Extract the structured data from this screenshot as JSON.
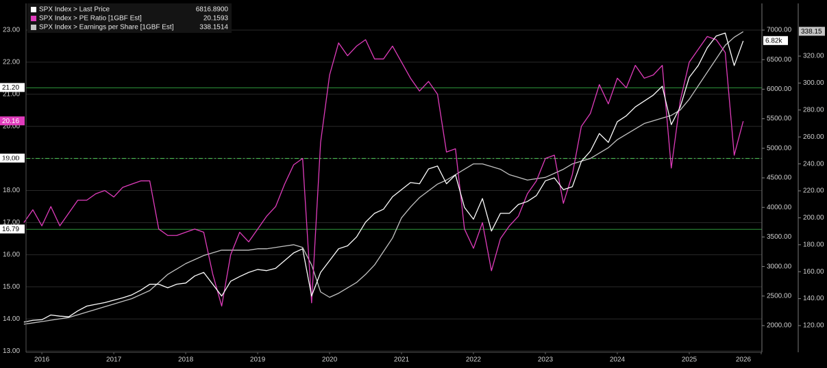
{
  "chart_data": {
    "type": "line",
    "x": [
      2016.25,
      2016.375,
      2016.5,
      2016.625,
      2016.75,
      2016.875,
      2017,
      2017.125,
      2017.25,
      2017.375,
      2017.5,
      2017.625,
      2017.75,
      2017.875,
      2018,
      2018.125,
      2018.25,
      2018.375,
      2018.5,
      2018.625,
      2018.75,
      2018.875,
      2019,
      2019.125,
      2019.25,
      2019.375,
      2019.5,
      2019.625,
      2019.75,
      2019.875,
      2020,
      2020.125,
      2020.25,
      2020.375,
      2020.5,
      2020.625,
      2020.75,
      2020.875,
      2021,
      2021.125,
      2021.25,
      2021.375,
      2021.5,
      2021.625,
      2021.75,
      2021.875,
      2022,
      2022.125,
      2022.25,
      2022.375,
      2022.5,
      2022.625,
      2022.75,
      2022.875,
      2023,
      2023.125,
      2023.25,
      2023.375,
      2023.5,
      2023.625,
      2023.75,
      2023.875,
      2024,
      2024.125,
      2024.25,
      2024.375,
      2024.5,
      2024.625,
      2024.75,
      2024.875,
      2025,
      2025.125,
      2025.25,
      2025.375,
      2025.5,
      2025.625,
      2025.75,
      2025.875,
      2026,
      2026.125,
      2026.25
    ],
    "xlim": [
      2016.28,
      2026.51
    ],
    "xticks": [
      {
        "value": 2016.5,
        "label": "2016"
      },
      {
        "value": 2017.5,
        "label": "2017"
      },
      {
        "value": 2018.5,
        "label": "2018"
      },
      {
        "value": 2019.5,
        "label": "2019"
      },
      {
        "value": 2020.5,
        "label": "2020"
      },
      {
        "value": 2021.5,
        "label": "2021"
      },
      {
        "value": 2022.5,
        "label": "2022"
      },
      {
        "value": 2023.5,
        "label": "2023"
      },
      {
        "value": 2024.5,
        "label": "2024"
      },
      {
        "value": 2025.5,
        "label": "2025"
      },
      {
        "value": 2026.5,
        "label": "2026"
      }
    ],
    "ylim": [
      12.96,
      23.83
    ],
    "yticks": [
      {
        "value": 13,
        "label": "13.00"
      },
      {
        "value": 14,
        "label": "14.00"
      },
      {
        "value": 15,
        "label": "15.00"
      },
      {
        "value": 16,
        "label": "16.00"
      },
      {
        "value": 17,
        "label": "17.00"
      },
      {
        "value": 18,
        "label": "18.00"
      },
      {
        "value": 19,
        "label": "19.00"
      },
      {
        "value": 20,
        "label": "20.00"
      },
      {
        "value": 21,
        "label": "21.00"
      },
      {
        "value": 22,
        "label": "22.00"
      },
      {
        "value": 23,
        "label": "23.00"
      }
    ],
    "y2lim": [
      1549,
      7451
    ],
    "y2ticks": [
      {
        "value": 2000,
        "label": "2000.00"
      },
      {
        "value": 2500,
        "label": "2500.00"
      },
      {
        "value": 3000,
        "label": "3000.00"
      },
      {
        "value": 3500,
        "label": "3500.00"
      },
      {
        "value": 4000,
        "label": "4000.00"
      },
      {
        "value": 4500,
        "label": "4500.00"
      },
      {
        "value": 5000,
        "label": "5000.00"
      },
      {
        "value": 5500,
        "label": "5500.00"
      },
      {
        "value": 6000,
        "label": "6000.00"
      },
      {
        "value": 6500,
        "label": "6500.00"
      },
      {
        "value": 7000,
        "label": "7000.00"
      }
    ],
    "y3lim": [
      100.2,
      359.1
    ],
    "y3ticks": [
      {
        "value": 120,
        "label": "120.00"
      },
      {
        "value": 140,
        "label": "140.00"
      },
      {
        "value": 160,
        "label": "160.00"
      },
      {
        "value": 180,
        "label": "180.00"
      },
      {
        "value": 200,
        "label": "200.00"
      },
      {
        "value": 220,
        "label": "220.00"
      },
      {
        "value": 240,
        "label": "240.00"
      },
      {
        "value": 260,
        "label": "260.00"
      },
      {
        "value": 280,
        "label": "280.00"
      },
      {
        "value": 300,
        "label": "300.00"
      },
      {
        "value": 320,
        "label": "320.00"
      }
    ],
    "grid": true,
    "reference_color": "#2f9a3c",
    "reference_lines": [
      {
        "value": 21.2,
        "label": "21.20",
        "style": "solid"
      },
      {
        "value": 19,
        "label": "19.00",
        "style": "dashdot"
      },
      {
        "value": 16.79,
        "label": "16.79",
        "style": "solid"
      }
    ],
    "series": [
      {
        "name": "SPX Index > Last Price",
        "color": "#ffffff",
        "axis": "y2",
        "legend_value": "6816.8900",
        "last_label": "6.82k",
        "values": [
          2060,
          2090,
          2100,
          2180,
          2160,
          2150,
          2250,
          2330,
          2360,
          2390,
          2430,
          2470,
          2520,
          2600,
          2700,
          2700,
          2640,
          2700,
          2720,
          2840,
          2900,
          2700,
          2500,
          2750,
          2830,
          2900,
          2950,
          2930,
          2970,
          3100,
          3230,
          3300,
          2500,
          2900,
          3100,
          3300,
          3350,
          3500,
          3750,
          3900,
          3970,
          4180,
          4300,
          4420,
          4400,
          4650,
          4700,
          4400,
          4550,
          4000,
          3800,
          4150,
          3600,
          3900,
          3900,
          4050,
          4100,
          4200,
          4450,
          4500,
          4300,
          4350,
          4780,
          4950,
          5250,
          5100,
          5450,
          5550,
          5700,
          5800,
          5900,
          6050,
          5400,
          5700,
          6200,
          6400,
          6700,
          6900,
          6950,
          6400,
          6816.89
        ]
      },
      {
        "name": "SPX Index > PE Ratio [1GBF Est]",
        "color": "#e03cbc",
        "axis": "y",
        "legend_value": "20.1593",
        "last_label": "20.16",
        "values": [
          17.0,
          17.4,
          16.9,
          17.5,
          16.9,
          17.3,
          17.7,
          17.7,
          17.9,
          18.0,
          17.8,
          18.1,
          18.2,
          18.3,
          18.3,
          16.8,
          16.6,
          16.6,
          16.7,
          16.8,
          16.7,
          15.4,
          14.4,
          16.0,
          16.7,
          16.4,
          16.8,
          17.2,
          17.5,
          18.2,
          18.8,
          19.0,
          14.5,
          19.5,
          21.6,
          22.6,
          22.2,
          22.5,
          22.7,
          22.1,
          22.1,
          22.5,
          22.0,
          21.5,
          21.1,
          21.4,
          21.0,
          19.2,
          19.3,
          16.8,
          16.2,
          17.0,
          15.5,
          16.5,
          16.9,
          17.2,
          17.9,
          18.3,
          19.0,
          19.1,
          17.6,
          18.5,
          20.0,
          20.4,
          21.3,
          20.7,
          21.5,
          21.2,
          21.9,
          21.5,
          21.6,
          21.9,
          18.7,
          20.8,
          22.0,
          22.4,
          22.8,
          22.7,
          22.3,
          19.1,
          20.1593
        ]
      },
      {
        "name": "SPX Index > Earnings per Share [1GBF Est]",
        "color": "#c4c4c4",
        "axis": "y3",
        "legend_value": "338.1514",
        "last_label": "338.15",
        "values": [
          121,
          122,
          123,
          124,
          125,
          126,
          128,
          130,
          132,
          134,
          136,
          138,
          140,
          143,
          146,
          152,
          158,
          162,
          166,
          169,
          172,
          174,
          176,
          176,
          176,
          176,
          177,
          177,
          178,
          179,
          180,
          178,
          165,
          145,
          141,
          144,
          148,
          152,
          158,
          165,
          175,
          185,
          200,
          208,
          215,
          220,
          225,
          228,
          232,
          236,
          240,
          240,
          238,
          236,
          232,
          230,
          228,
          229,
          230,
          233,
          236,
          240,
          242,
          244,
          248,
          252,
          258,
          262,
          266,
          270,
          272,
          274,
          276,
          280,
          288,
          298,
          308,
          318,
          328,
          334,
          338.1514
        ]
      }
    ]
  }
}
